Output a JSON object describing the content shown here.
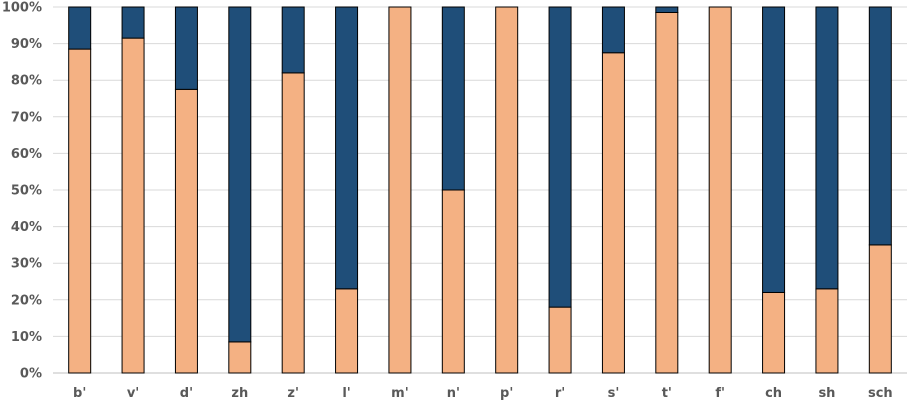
{
  "chart_data": {
    "type": "bar",
    "stacked": true,
    "percent": true,
    "title": "",
    "xlabel": "",
    "ylabel": "",
    "ylim": [
      0,
      100
    ],
    "yticks": [
      "0%",
      "10%",
      "20%",
      "30%",
      "40%",
      "50%",
      "60%",
      "70%",
      "80%",
      "90%",
      "100%"
    ],
    "grid": true,
    "categories": [
      "b'",
      "v'",
      "d'",
      "zh",
      "z'",
      "l'",
      "m'",
      "n'",
      "p'",
      "r'",
      "s'",
      "t'",
      "f'",
      "ch",
      "sh",
      "sch"
    ],
    "series": [
      {
        "color": "#f4b183",
        "values": [
          88.5,
          91.5,
          77.5,
          8.5,
          82,
          23,
          100,
          50,
          100,
          18,
          87.5,
          98.5,
          100,
          22,
          23,
          35
        ]
      },
      {
        "color": "#1f4e79",
        "values": [
          11.5,
          8.5,
          22.5,
          91.5,
          18,
          77,
          0,
          50,
          0,
          82,
          12.5,
          1.5,
          0,
          78,
          77,
          65
        ]
      }
    ]
  }
}
